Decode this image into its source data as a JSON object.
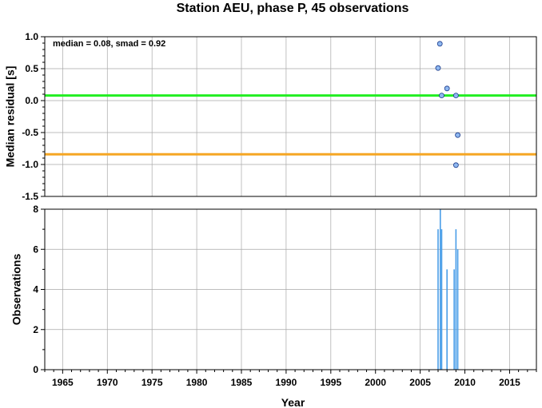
{
  "title": "Station AEU, phase P, 45 observations",
  "chart_data": [
    {
      "type": "scatter",
      "ylabel": "Median residual [s]",
      "xlim": [
        1963,
        2018
      ],
      "ylim": [
        -1.5,
        1.0
      ],
      "yticks": [
        -1.5,
        -1.0,
        -0.5,
        0.0,
        0.5,
        1.0
      ],
      "grid": true,
      "annotation": "median = 0.08, smad = 0.92",
      "points": {
        "x": [
          2007.0,
          2007.2,
          2007.4,
          2008.0,
          2009.0,
          2009.2,
          2009.0
        ],
        "y": [
          0.51,
          0.89,
          0.08,
          0.19,
          0.08,
          -0.54,
          -1.01
        ]
      },
      "reference_lines": [
        {
          "y": 0.08,
          "color": "#22ee22"
        },
        {
          "y": -0.84,
          "color": "#f5a623"
        }
      ],
      "point_color": "#8fb8f0"
    },
    {
      "type": "bar",
      "xlabel": "Year",
      "ylabel": "Observations",
      "xlim": [
        1963,
        2018
      ],
      "xticks": [
        1965,
        1970,
        1975,
        1980,
        1985,
        1990,
        1995,
        2000,
        2005,
        2010,
        2015
      ],
      "ylim": [
        0,
        8
      ],
      "yticks": [
        0,
        2,
        4,
        6,
        8
      ],
      "grid": true,
      "bar_color": "#4a9ee8",
      "bars": {
        "x": [
          2007.0,
          2007.25,
          2007.4,
          2008.0,
          2008.8,
          2009.0,
          2009.2
        ],
        "values": [
          7,
          8,
          7,
          5,
          5,
          7,
          6
        ]
      }
    }
  ]
}
